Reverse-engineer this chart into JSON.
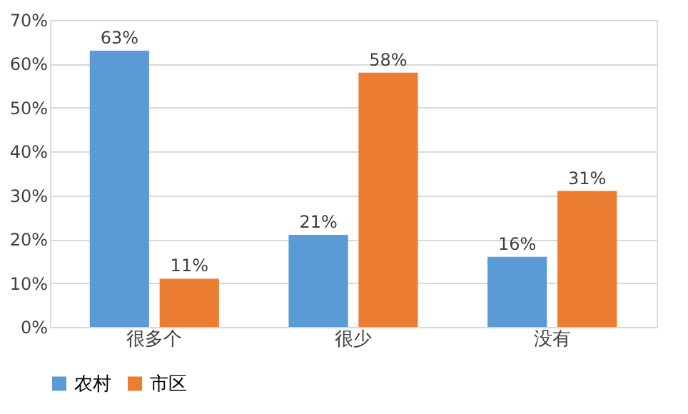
{
  "chart_data": {
    "type": "bar",
    "categories": [
      "很多个",
      "很少",
      "没有"
    ],
    "series": [
      {
        "name": "农村",
        "color": "#5b9bd5",
        "values": [
          63,
          21,
          16
        ],
        "value_labels": [
          "63%",
          "21%",
          "16%"
        ]
      },
      {
        "name": "市区",
        "color": "#ed7d31",
        "values": [
          11,
          58,
          31
        ],
        "value_labels": [
          "11%",
          "58%",
          "31%"
        ]
      }
    ],
    "ylim": [
      0,
      70
    ],
    "yticks": [
      {
        "value": 0,
        "label": "0%"
      },
      {
        "value": 10,
        "label": "10%"
      },
      {
        "value": 20,
        "label": "20%"
      },
      {
        "value": 30,
        "label": "30%"
      },
      {
        "value": 40,
        "label": "40%"
      },
      {
        "value": 50,
        "label": "50%"
      },
      {
        "value": 60,
        "label": "60%"
      },
      {
        "value": 70,
        "label": "70%"
      }
    ],
    "grid": "y",
    "legend": "bottom"
  }
}
